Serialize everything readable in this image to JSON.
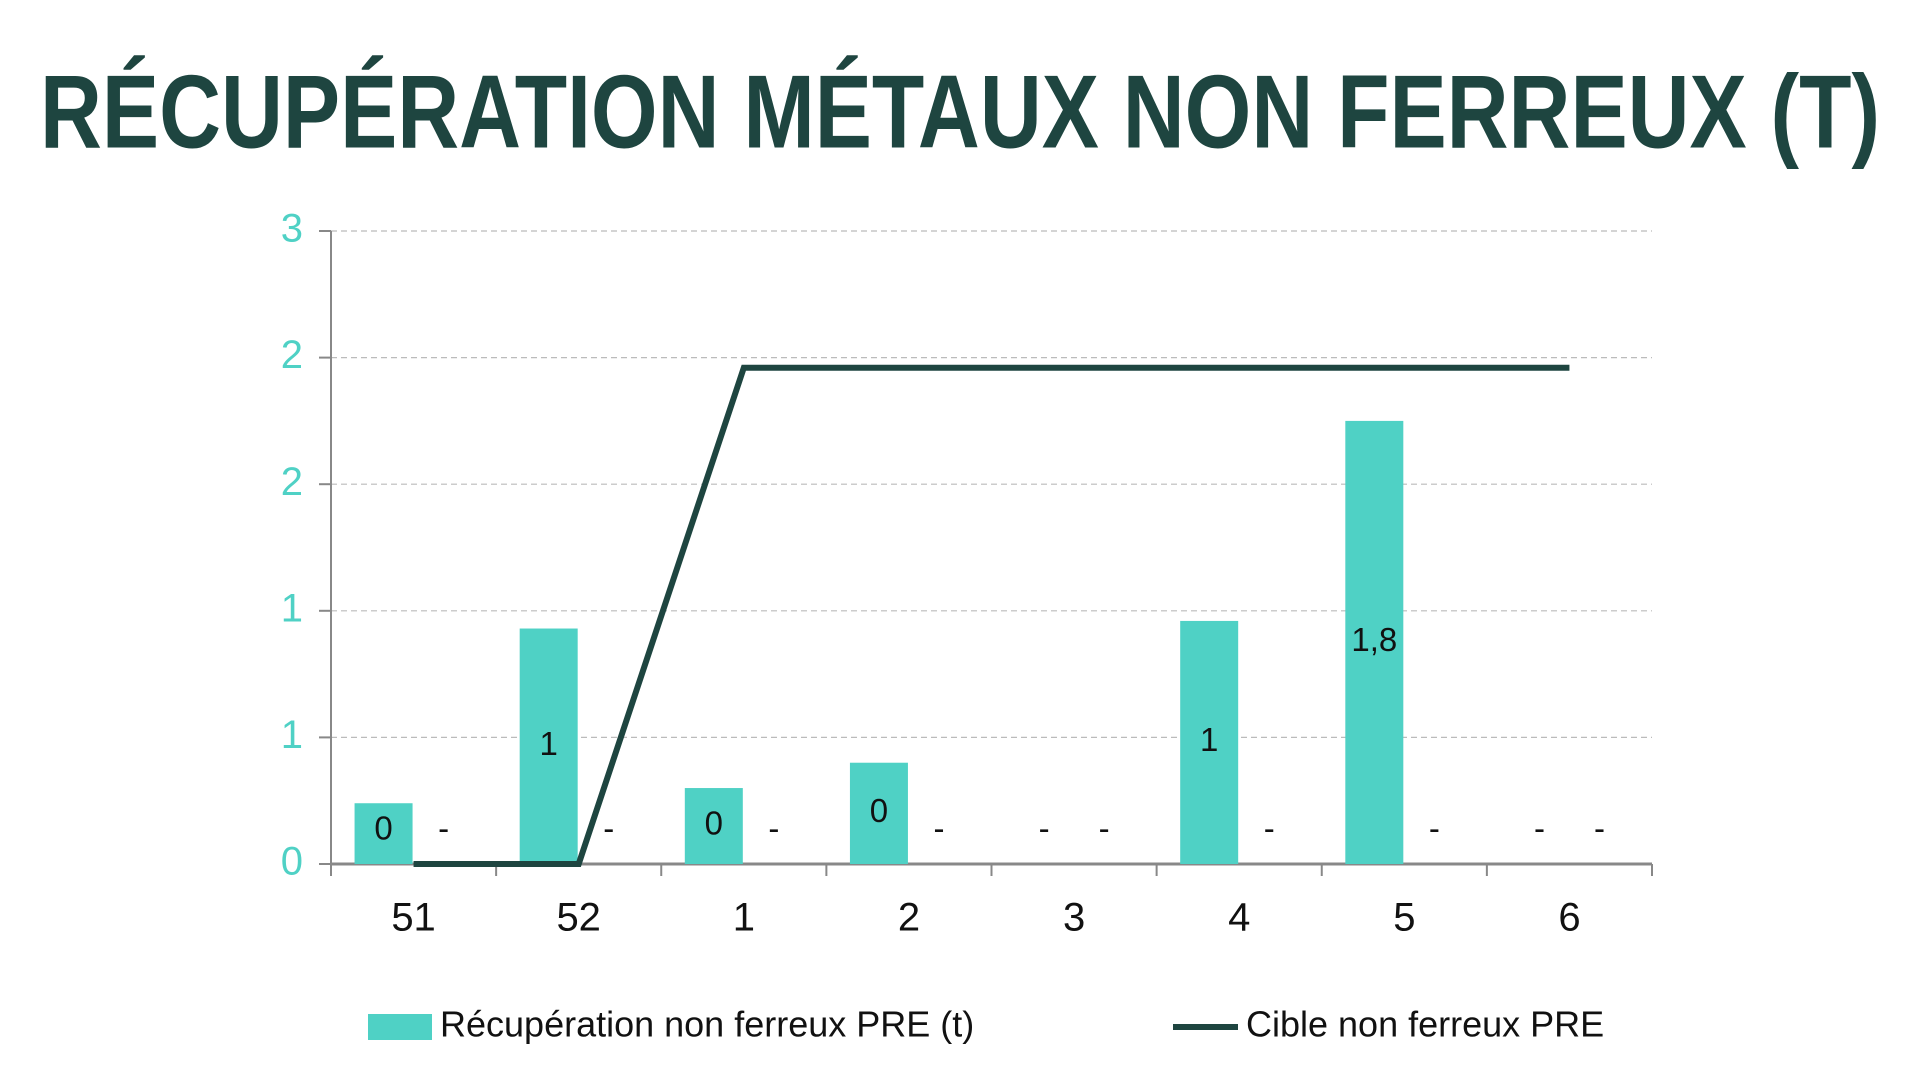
{
  "chart_data": {
    "type": "bar",
    "title": "RÉCUPÉRATION MÉTAUX NON FERREUX (T)",
    "categories": [
      "51",
      "52",
      "1",
      "2",
      "3",
      "4",
      "5",
      "6"
    ],
    "series": [
      {
        "name": "Récupération non ferreux PRE (t)",
        "type": "bar",
        "color": "#4fd1c5",
        "values": [
          0.24,
          0.93,
          0.3,
          0.4,
          0,
          0.96,
          1.75,
          0
        ],
        "value_labels": [
          "0",
          "1",
          "0",
          "0",
          "-",
          "1",
          "1,8",
          "-"
        ]
      },
      {
        "type": "bar",
        "color": "#4fd1c5",
        "values": [
          0,
          0,
          0,
          0,
          0,
          0,
          0,
          0
        ],
        "value_labels": [
          "-",
          "-",
          "-",
          "-",
          "-",
          "-",
          "-",
          "-"
        ]
      },
      {
        "name": "Cible non ferreux PRE",
        "type": "line",
        "color": "#1e4540",
        "values": [
          0,
          0,
          1.96,
          1.96,
          1.96,
          1.96,
          1.96,
          1.96
        ]
      }
    ],
    "ylim": [
      0,
      2.5
    ],
    "yticks": [
      0,
      {
        "value": 0.5,
        "label": "1"
      },
      1,
      {
        "value": 1.5,
        "label": "2"
      },
      2,
      {
        "value": 2.5,
        "label": "3"
      }
    ],
    "grid": true
  }
}
